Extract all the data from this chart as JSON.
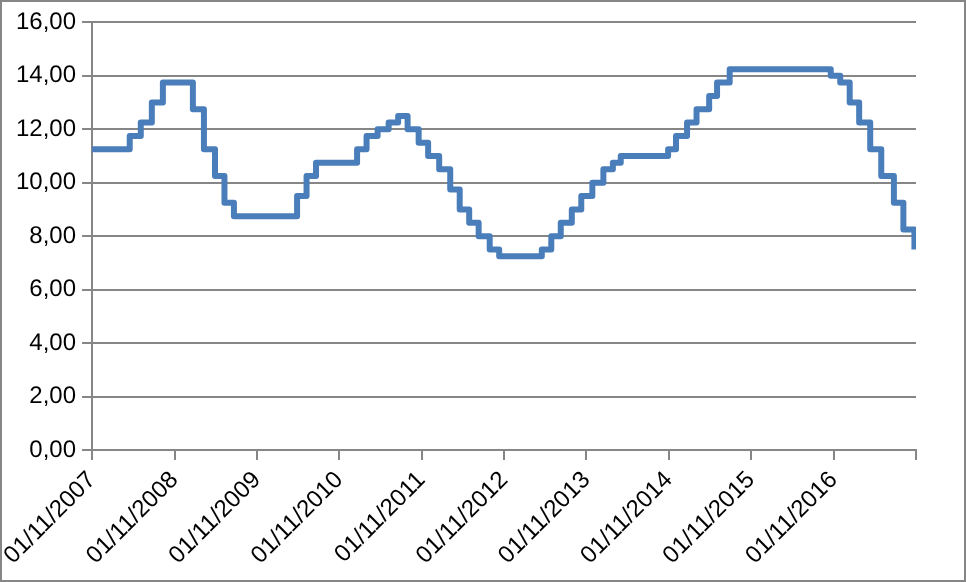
{
  "chart_data": {
    "type": "step",
    "x": [
      "2007-11-01",
      "2008-04-16",
      "2008-06-04",
      "2008-07-23",
      "2008-09-10",
      "2009-01-21",
      "2009-03-11",
      "2009-04-29",
      "2009-06-10",
      "2009-07-22",
      "2010-04-28",
      "2010-06-09",
      "2010-07-21",
      "2011-01-19",
      "2011-03-02",
      "2011-04-20",
      "2011-06-08",
      "2011-07-20",
      "2011-08-31",
      "2011-10-19",
      "2011-11-30",
      "2012-01-18",
      "2012-03-07",
      "2012-04-18",
      "2012-05-30",
      "2012-07-11",
      "2012-08-29",
      "2012-10-10",
      "2013-04-17",
      "2013-05-29",
      "2013-07-10",
      "2013-08-28",
      "2013-10-09",
      "2013-11-27",
      "2014-01-15",
      "2014-02-26",
      "2014-04-02",
      "2014-10-29",
      "2014-12-03",
      "2015-01-21",
      "2015-03-04",
      "2015-04-29",
      "2015-06-03",
      "2015-07-29",
      "2016-10-19",
      "2016-11-30",
      "2017-01-11",
      "2017-02-22",
      "2017-04-12",
      "2017-05-31",
      "2017-07-26",
      "2017-09-06",
      "2017-10-25"
    ],
    "series": [
      {
        "color": "#4a7ebb",
        "values": [
          11.25,
          11.75,
          12.25,
          13.0,
          13.75,
          12.75,
          11.25,
          10.25,
          9.25,
          8.75,
          9.5,
          10.25,
          10.75,
          11.25,
          11.75,
          12.0,
          12.25,
          12.5,
          12.0,
          11.5,
          11.0,
          10.5,
          9.75,
          9.0,
          8.5,
          8.0,
          7.5,
          7.25,
          7.5,
          8.0,
          8.5,
          9.0,
          9.5,
          10.0,
          10.5,
          10.75,
          11.0,
          11.25,
          11.75,
          12.25,
          12.75,
          13.25,
          13.75,
          14.25,
          14.0,
          13.75,
          13.0,
          12.25,
          11.25,
          10.25,
          9.25,
          8.25,
          7.5
        ]
      }
    ],
    "xlim": [
      "2007-11-01",
      "2017-11-01"
    ],
    "xticks": [
      {
        "value": "2007-11-01",
        "label": "01/11/2007"
      },
      {
        "value": "2008-11-01",
        "label": "01/11/2008"
      },
      {
        "value": "2009-11-01",
        "label": "01/11/2009"
      },
      {
        "value": "2010-11-01",
        "label": "01/11/2010"
      },
      {
        "value": "2011-11-01",
        "label": "01/11/2011"
      },
      {
        "value": "2012-11-01",
        "label": "01/11/2012"
      },
      {
        "value": "2013-11-01",
        "label": "01/11/2013"
      },
      {
        "value": "2014-11-01",
        "label": "01/11/2014"
      },
      {
        "value": "2015-11-01",
        "label": "01/11/2015"
      },
      {
        "value": "2016-11-01",
        "label": "01/11/2016"
      },
      {
        "value": "2017-11-01",
        "label": null
      }
    ],
    "ylim": [
      0,
      16
    ],
    "yticks": [
      {
        "value": 0,
        "label": "0,00"
      },
      {
        "value": 2,
        "label": "2,00"
      },
      {
        "value": 4,
        "label": "4,00"
      },
      {
        "value": 6,
        "label": "6,00"
      },
      {
        "value": 8,
        "label": "8,00"
      },
      {
        "value": 10,
        "label": "10,00"
      },
      {
        "value": 12,
        "label": "12,00"
      },
      {
        "value": 14,
        "label": "14,00"
      },
      {
        "value": 16,
        "label": "16,00"
      }
    ],
    "grid": "y",
    "legend": false,
    "marker": "none",
    "line_style": "solid"
  }
}
